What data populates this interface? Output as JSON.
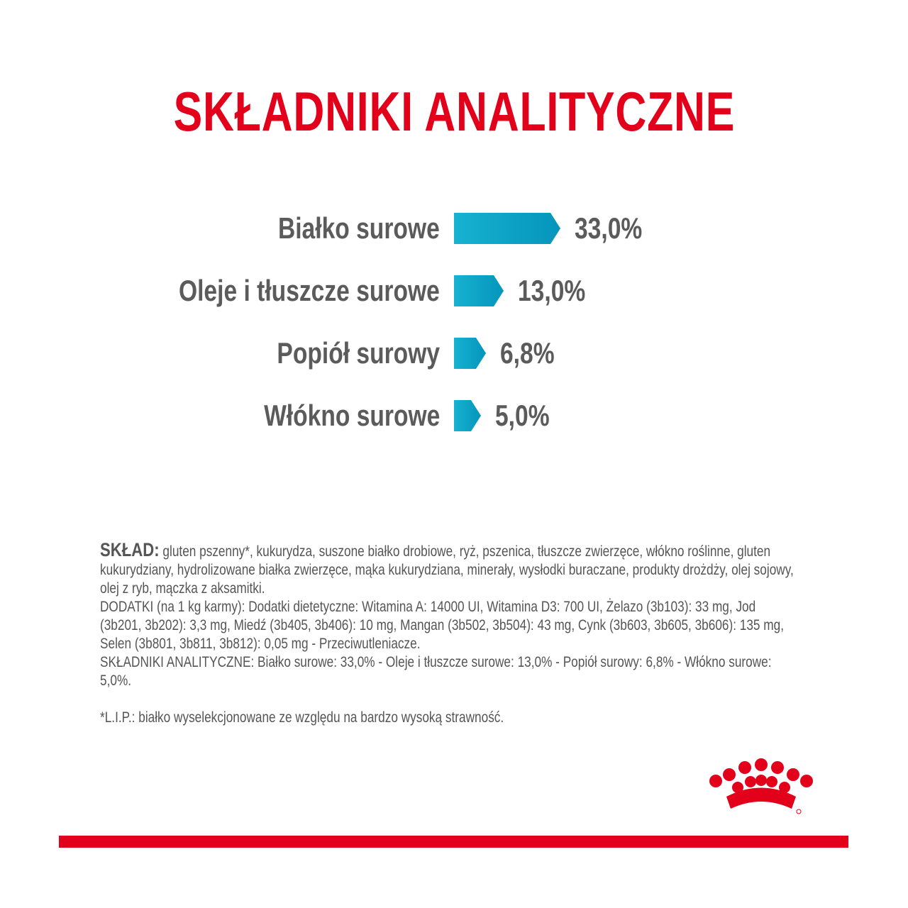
{
  "title": "SKŁADNIKI ANALITYCZNE",
  "chart_data": {
    "type": "bar",
    "orientation": "horizontal",
    "categories": [
      "Białko surowe",
      "Oleje i tłuszcze surowe",
      "Popiół surowy",
      "Włókno surowe"
    ],
    "values": [
      33.0,
      13.0,
      6.8,
      5.0
    ],
    "value_labels": [
      "33,0%",
      "13,0%",
      "6,8%",
      "5,0%"
    ],
    "unit": "%",
    "bar_color": "#0aa3c6"
  },
  "composition": {
    "heading": "SKŁAD:",
    "text": " gluten pszenny*, kukurydza, suszone białko drobiowe, ryż, pszenica, tłuszcze zwierzęce, włókno roślinne, gluten kukurydziany, hydrolizowane białka zwierzęce, mąka kukurydziana, minerały, wysłodki buraczane, produkty drożdży, olej sojowy, olej z ryb, mączka z aksamitki.",
    "additives": "DODATKI (na 1 kg karmy): Dodatki dietetyczne: Witamina A: 14000 UI, Witamina D3: 700 UI, Żelazo (3b103): 33 mg, Jod (3b201, 3b202): 3,3 mg, Miedź (3b405, 3b406): 10 mg, Mangan (3b502, 3b504): 43 mg, Cynk (3b603, 3b605, 3b606): 135 mg, Selen (3b801, 3b811, 3b812): 0,05 mg - Przeciwutleniacze.",
    "analytical": "SKŁADNIKI ANALITYCZNE: Białko surowe: 33,0% - Oleje i tłuszcze surowe: 13,0% - Popiół surowy: 6,8% - Włókno surowe: 5,0%.",
    "footnote": "*L.I.P.: białko wyselekcjonowane ze względu na bardzo wysoką strawność."
  },
  "brand": {
    "logo": "royal-canin-crown-logo",
    "color": "#e2001a"
  }
}
